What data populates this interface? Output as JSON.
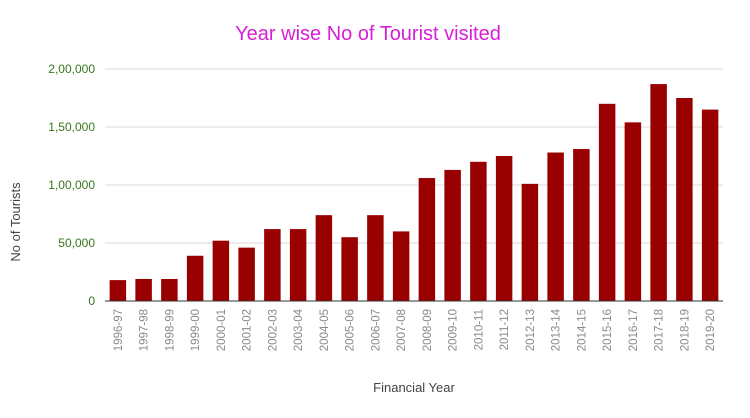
{
  "chart_data": {
    "type": "bar",
    "title": "Year wise No of Tourist visited",
    "xlabel": "Financial Year",
    "ylabel": "No of Tourists",
    "ylim": [
      0,
      200000
    ],
    "yticks": [
      0,
      50000,
      100000,
      150000,
      200000
    ],
    "ytick_labels": [
      "0",
      "50,000",
      "1,00,000",
      "1,50,000",
      "2,00,000"
    ],
    "grid": true,
    "legend": "none",
    "bar_color": "#990000",
    "categories": [
      "1996-97",
      "1997-98",
      "1998-99",
      "1999-00",
      "2000-01",
      "2001-02",
      "2002-03",
      "2003-04",
      "2004-05",
      "2005-06",
      "2006-07",
      "2007-08",
      "2008-09",
      "2009-10",
      "2010-11",
      "2011-12",
      "2012-13",
      "2013-14",
      "2014-15",
      "2015-16",
      "2016-17",
      "2017-18",
      "2018-19",
      "2019-20"
    ],
    "values": [
      18000,
      19000,
      19000,
      39000,
      52000,
      46000,
      62000,
      62000,
      74000,
      55000,
      74000,
      60000,
      106000,
      113000,
      120000,
      125000,
      101000,
      128000,
      131000,
      170000,
      154000,
      187000,
      175000,
      165000
    ]
  }
}
